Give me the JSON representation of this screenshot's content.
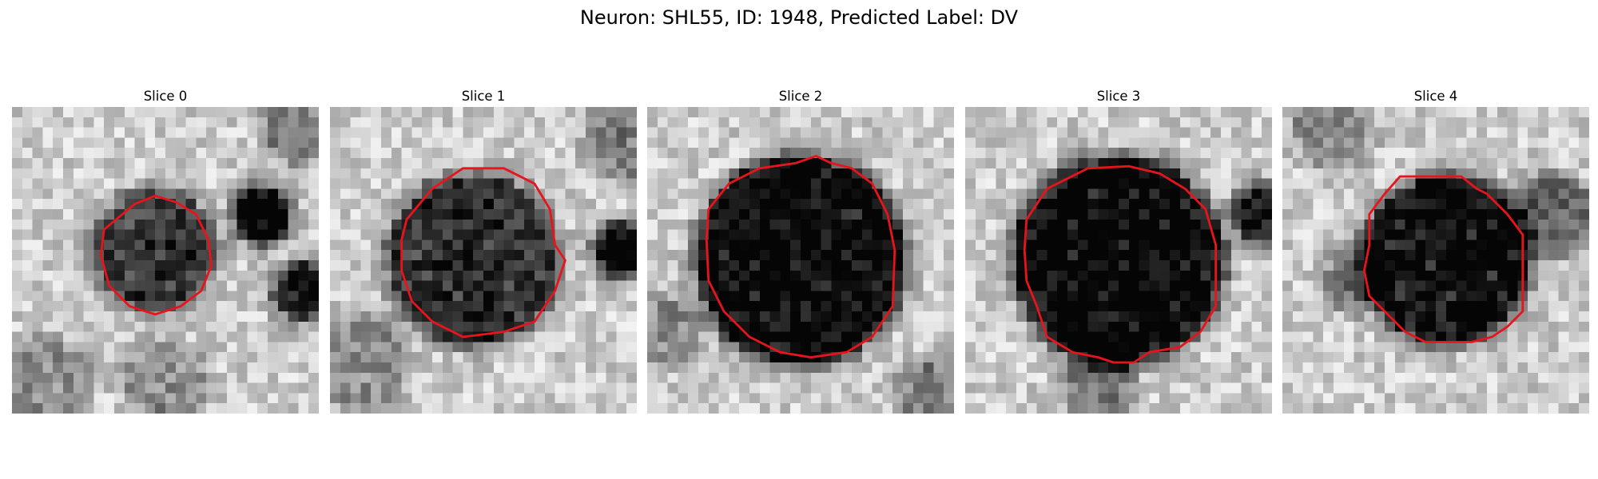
{
  "figure": {
    "title": "Neuron: SHL55, ID: 1948, Predicted Label: DV"
  },
  "colors": {
    "contour": "#e8141c",
    "background": "#ffffff"
  },
  "grid_size": 30,
  "panels": [
    {
      "title": "Slice 0",
      "blobs": [
        {
          "cx": 14,
          "cy": 14,
          "r": 5.0,
          "depth": 0.58
        },
        {
          "cx": 24.5,
          "cy": 10.5,
          "r": 1.7,
          "depth": 0.85
        },
        {
          "cx": 28.5,
          "cy": 18.0,
          "r": 1.8,
          "depth": 0.75
        },
        {
          "cx": 28.0,
          "cy": 2.0,
          "r": 2.6,
          "depth": 0.3
        },
        {
          "cx": 3.0,
          "cy": 27.0,
          "r": 3.5,
          "depth": 0.25
        },
        {
          "cx": 15.0,
          "cy": 27.0,
          "r": 3.0,
          "depth": 0.25
        }
      ],
      "contour": [
        [
          9.0,
          12.0
        ],
        [
          12.0,
          9.5
        ],
        [
          14.0,
          8.7
        ],
        [
          16.0,
          9.3
        ],
        [
          18.0,
          10.5
        ],
        [
          19.2,
          13.0
        ],
        [
          19.5,
          15.5
        ],
        [
          18.5,
          18.0
        ],
        [
          16.5,
          19.5
        ],
        [
          14.0,
          20.3
        ],
        [
          11.5,
          19.5
        ],
        [
          9.5,
          17.5
        ],
        [
          8.7,
          14.5
        ]
      ]
    },
    {
      "title": "Slice 1",
      "blobs": [
        {
          "cx": 14,
          "cy": 15,
          "r": 7.5,
          "depth": 0.62
        },
        {
          "cx": 28.5,
          "cy": 14.0,
          "r": 1.6,
          "depth": 0.85
        },
        {
          "cx": 29.0,
          "cy": 3.0,
          "r": 3.0,
          "depth": 0.3
        },
        {
          "cx": 3.0,
          "cy": 25.0,
          "r": 3.5,
          "depth": 0.25
        }
      ],
      "contour": [
        [
          7.5,
          11.0
        ],
        [
          10.0,
          8.0
        ],
        [
          13.0,
          6.0
        ],
        [
          17.0,
          6.0
        ],
        [
          20.0,
          7.5
        ],
        [
          21.5,
          10.0
        ],
        [
          22.0,
          13.5
        ],
        [
          23.0,
          15.0
        ],
        [
          22.0,
          18.0
        ],
        [
          20.0,
          21.0
        ],
        [
          17.0,
          22.0
        ],
        [
          13.0,
          22.5
        ],
        [
          10.0,
          21.0
        ],
        [
          8.0,
          19.0
        ],
        [
          7.0,
          16.0
        ],
        [
          7.0,
          13.0
        ]
      ]
    },
    {
      "title": "Slice 2",
      "blobs": [
        {
          "cx": 15,
          "cy": 15,
          "r": 9.3,
          "depth": 0.78
        },
        {
          "cx": 28.0,
          "cy": 28.0,
          "r": 2.5,
          "depth": 0.3
        },
        {
          "cx": 2.0,
          "cy": 22.0,
          "r": 2.5,
          "depth": 0.25
        }
      ],
      "contour": [
        [
          6.0,
          10.0
        ],
        [
          8.0,
          7.5
        ],
        [
          11.0,
          6.0
        ],
        [
          14.5,
          5.5
        ],
        [
          16.5,
          4.8
        ],
        [
          18.0,
          5.5
        ],
        [
          20.0,
          6.0
        ],
        [
          22.0,
          7.5
        ],
        [
          23.5,
          10.5
        ],
        [
          24.2,
          14.0
        ],
        [
          24.0,
          19.5
        ],
        [
          22.0,
          22.5
        ],
        [
          19.5,
          24.0
        ],
        [
          16.0,
          24.5
        ],
        [
          13.0,
          24.0
        ],
        [
          10.0,
          22.5
        ],
        [
          7.5,
          20.0
        ],
        [
          6.0,
          17.0
        ],
        [
          5.8,
          13.0
        ]
      ]
    },
    {
      "title": "Slice 3",
      "blobs": [
        {
          "cx": 15,
          "cy": 15,
          "r": 9.3,
          "depth": 0.8
        },
        {
          "cx": 29.0,
          "cy": 10.5,
          "r": 1.8,
          "depth": 0.7
        },
        {
          "cx": 13.0,
          "cy": 27.0,
          "r": 2.5,
          "depth": 0.3
        }
      ],
      "contour": [
        [
          6.0,
          11.0
        ],
        [
          8.0,
          8.0
        ],
        [
          10.0,
          7.0
        ],
        [
          12.0,
          6.0
        ],
        [
          16.0,
          5.8
        ],
        [
          19.0,
          6.5
        ],
        [
          21.5,
          8.0
        ],
        [
          23.5,
          10.0
        ],
        [
          24.5,
          13.5
        ],
        [
          24.5,
          19.5
        ],
        [
          23.0,
          22.0
        ],
        [
          21.0,
          23.5
        ],
        [
          18.0,
          24.0
        ],
        [
          16.5,
          25.0
        ],
        [
          14.5,
          25.0
        ],
        [
          13.0,
          24.5
        ],
        [
          10.5,
          24.0
        ],
        [
          8.0,
          22.5
        ],
        [
          7.0,
          19.5
        ],
        [
          6.0,
          17.0
        ],
        [
          5.8,
          14.0
        ]
      ]
    },
    {
      "title": "Slice 4",
      "blobs": [
        {
          "cx": 16,
          "cy": 15,
          "r": 7.3,
          "depth": 0.75
        },
        {
          "cx": 26.5,
          "cy": 10.5,
          "r": 2.8,
          "depth": 0.4
        },
        {
          "cx": 7.0,
          "cy": 17.0,
          "r": 2.0,
          "depth": 0.35
        },
        {
          "cx": 5.0,
          "cy": 2.0,
          "r": 3.0,
          "depth": 0.25
        }
      ],
      "contour": [
        [
          8.5,
          10.5
        ],
        [
          10.0,
          8.5
        ],
        [
          11.5,
          6.8
        ],
        [
          17.5,
          6.8
        ],
        [
          19.0,
          8.0
        ],
        [
          20.0,
          8.5
        ],
        [
          22.0,
          10.5
        ],
        [
          23.5,
          12.5
        ],
        [
          23.5,
          20.0
        ],
        [
          22.0,
          21.5
        ],
        [
          20.5,
          22.5
        ],
        [
          18.5,
          23.0
        ],
        [
          14.0,
          23.0
        ],
        [
          12.0,
          22.0
        ],
        [
          10.0,
          20.0
        ],
        [
          8.5,
          18.5
        ],
        [
          8.0,
          16.0
        ],
        [
          8.5,
          13.5
        ]
      ]
    }
  ]
}
